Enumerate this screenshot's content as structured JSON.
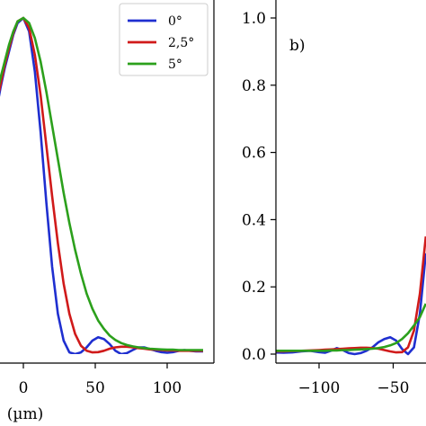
{
  "chart_data": [
    {
      "type": "line",
      "panel": "left",
      "panel_label": "",
      "xlabel": "(µm)",
      "ylabel": "",
      "xlim": [
        -25,
        125
      ],
      "ylim": [
        -0.035,
        1.06
      ],
      "xticks": [
        0,
        50,
        100
      ],
      "xtick_labels": [
        "0",
        "50",
        "100"
      ],
      "legend": {
        "placement": "top-right",
        "entries": [
          "0°",
          "2,5°",
          "5°"
        ]
      },
      "series": [
        {
          "name": "0°",
          "color": "#1f2fd0",
          "x": [
            -25,
            -22,
            -19,
            -16,
            -13,
            -10,
            -7,
            -4,
            0,
            4,
            8,
            12,
            16,
            20,
            24,
            28,
            32,
            36,
            40,
            44,
            48,
            52,
            56,
            60,
            64,
            68,
            72,
            76,
            80,
            84,
            88,
            92,
            96,
            100,
            104,
            108,
            112,
            116,
            120,
            125
          ],
          "y": [
            0.6,
            0.66,
            0.72,
            0.79,
            0.85,
            0.9,
            0.95,
            0.985,
            1.0,
            0.96,
            0.84,
            0.66,
            0.45,
            0.26,
            0.12,
            0.04,
            0.005,
            0.0,
            0.005,
            0.02,
            0.04,
            0.05,
            0.045,
            0.03,
            0.01,
            0.0,
            0.003,
            0.012,
            0.02,
            0.02,
            0.015,
            0.01,
            0.006,
            0.004,
            0.006,
            0.01,
            0.012,
            0.01,
            0.008,
            0.008
          ]
        },
        {
          "name": "2,5°",
          "color": "#d01a1a",
          "x": [
            -25,
            -22,
            -19,
            -16,
            -13,
            -10,
            -7,
            -4,
            0,
            4,
            8,
            12,
            16,
            20,
            24,
            28,
            32,
            36,
            40,
            44,
            48,
            52,
            56,
            60,
            64,
            68,
            72,
            76,
            80,
            84,
            88,
            92,
            96,
            100,
            104,
            108,
            112,
            116,
            120,
            125
          ],
          "y": [
            0.62,
            0.68,
            0.74,
            0.8,
            0.86,
            0.91,
            0.955,
            0.99,
            1.0,
            0.97,
            0.89,
            0.77,
            0.62,
            0.47,
            0.33,
            0.21,
            0.12,
            0.06,
            0.025,
            0.01,
            0.005,
            0.006,
            0.01,
            0.016,
            0.02,
            0.022,
            0.022,
            0.02,
            0.018,
            0.016,
            0.014,
            0.013,
            0.012,
            0.011,
            0.011,
            0.01,
            0.01,
            0.01,
            0.01,
            0.01
          ]
        },
        {
          "name": "5°",
          "color": "#2ca01c",
          "x": [
            -25,
            -22,
            -19,
            -16,
            -13,
            -10,
            -7,
            -4,
            0,
            4,
            8,
            12,
            16,
            20,
            24,
            28,
            32,
            36,
            40,
            44,
            48,
            52,
            56,
            60,
            64,
            68,
            72,
            76,
            80,
            84,
            88,
            92,
            96,
            100,
            104,
            108,
            112,
            116,
            120,
            125
          ],
          "y": [
            0.64,
            0.7,
            0.76,
            0.82,
            0.87,
            0.92,
            0.96,
            0.99,
            1.0,
            0.985,
            0.94,
            0.87,
            0.78,
            0.68,
            0.58,
            0.48,
            0.39,
            0.31,
            0.24,
            0.18,
            0.135,
            0.1,
            0.075,
            0.055,
            0.042,
            0.033,
            0.027,
            0.023,
            0.02,
            0.018,
            0.016,
            0.015,
            0.014,
            0.013,
            0.013,
            0.012,
            0.012,
            0.012,
            0.012,
            0.012
          ]
        }
      ]
    },
    {
      "type": "line",
      "panel": "right",
      "panel_label": "b)",
      "xlabel": "",
      "ylabel": "",
      "xlim": [
        -130,
        -27
      ],
      "ylim": [
        -0.035,
        1.06
      ],
      "xticks": [
        -100,
        -50
      ],
      "xtick_labels": [
        "−100",
        "−50"
      ],
      "yticks": [
        0.0,
        0.2,
        0.4,
        0.6,
        0.8,
        1.0
      ],
      "ytick_labels": [
        "0.0",
        "0.2",
        "0.4",
        "0.6",
        "0.8",
        "1.0"
      ],
      "series": [
        {
          "name": "0°",
          "color": "#1f2fd0",
          "x": [
            -130,
            -124,
            -118,
            -112,
            -106,
            -100,
            -96,
            -92,
            -88,
            -84,
            -80,
            -76,
            -72,
            -68,
            -64,
            -60,
            -56,
            -52,
            -48,
            -44,
            -40,
            -36,
            -32,
            -28
          ],
          "y": [
            0.005,
            0.004,
            0.005,
            0.008,
            0.01,
            0.006,
            0.004,
            0.01,
            0.018,
            0.012,
            0.003,
            0.0,
            0.003,
            0.01,
            0.02,
            0.035,
            0.045,
            0.05,
            0.04,
            0.015,
            0.0,
            0.02,
            0.12,
            0.3
          ]
        },
        {
          "name": "2,5°",
          "color": "#d01a1a",
          "x": [
            -130,
            -124,
            -118,
            -112,
            -106,
            -100,
            -96,
            -92,
            -88,
            -84,
            -80,
            -76,
            -72,
            -68,
            -64,
            -60,
            -56,
            -52,
            -48,
            -44,
            -40,
            -36,
            -32,
            -28
          ],
          "y": [
            0.008,
            0.008,
            0.009,
            0.01,
            0.011,
            0.012,
            0.013,
            0.014,
            0.015,
            0.016,
            0.017,
            0.018,
            0.019,
            0.019,
            0.018,
            0.016,
            0.012,
            0.008,
            0.005,
            0.006,
            0.02,
            0.07,
            0.18,
            0.35
          ]
        },
        {
          "name": "5°",
          "color": "#2ca01c",
          "x": [
            -130,
            -124,
            -118,
            -112,
            -106,
            -100,
            -96,
            -92,
            -88,
            -84,
            -80,
            -76,
            -72,
            -68,
            -64,
            -60,
            -56,
            -52,
            -48,
            -44,
            -40,
            -36,
            -32,
            -28
          ],
          "y": [
            0.01,
            0.01,
            0.01,
            0.01,
            0.01,
            0.01,
            0.01,
            0.011,
            0.011,
            0.012,
            0.012,
            0.013,
            0.014,
            0.015,
            0.016,
            0.018,
            0.021,
            0.026,
            0.033,
            0.045,
            0.062,
            0.085,
            0.11,
            0.15
          ]
        }
      ]
    }
  ]
}
